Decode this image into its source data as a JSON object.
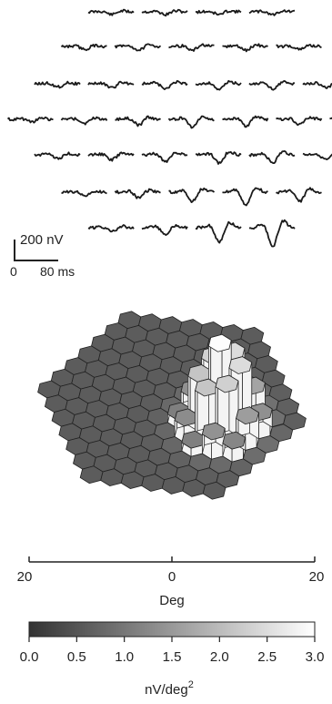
{
  "chart_data": [
    {
      "type": "line",
      "description_free": true,
      "scale_bar": {
        "amplitude_label": "200 nV",
        "time_zero_label": "0",
        "time_label": "80 ms",
        "amplitude": 200,
        "amplitude_unit": "nV",
        "time": 80,
        "time_unit": "ms"
      },
      "rows": [
        4,
        5,
        6,
        7,
        6,
        5,
        4
      ]
    },
    {
      "type": "heatmap",
      "xlabel": "Deg",
      "x_ticks": [
        "20",
        "0",
        "20"
      ],
      "xlim": [
        -20,
        20
      ],
      "colorbar": {
        "label": "nV/deg",
        "label_sup": "2",
        "ticks": [
          "0.0",
          "0.5",
          "1.0",
          "1.5",
          "2.0",
          "2.5",
          "3.0"
        ],
        "range": [
          0,
          3
        ],
        "colors": [
          "#333333",
          "#ffffff"
        ]
      },
      "peak_value": 3.0,
      "background_value": 0.6
    }
  ]
}
